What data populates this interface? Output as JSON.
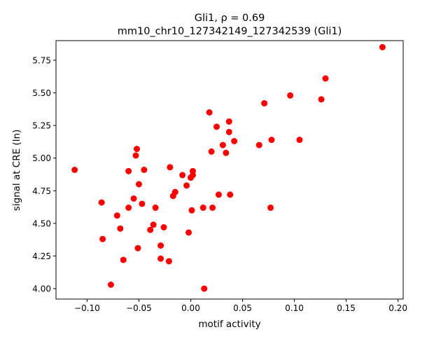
{
  "chart_data": {
    "type": "scatter",
    "title_line1": "Gli1, ρ = 0.69",
    "title_line2": "mm10_chr10_127342149_127342539 (Gli1)",
    "xlabel": "motif activity",
    "ylabel": "signal at CRE (ln)",
    "xlim": [
      -0.13,
      0.205
    ],
    "ylim": [
      3.92,
      5.9
    ],
    "xticks": [
      -0.1,
      -0.05,
      0.0,
      0.05,
      0.1,
      0.15,
      0.2
    ],
    "xtick_labels": [
      "−0.10",
      "−0.05",
      "0.00",
      "0.05",
      "0.10",
      "0.15",
      "0.20"
    ],
    "yticks": [
      4.0,
      4.25,
      4.5,
      4.75,
      5.0,
      5.25,
      5.5,
      5.75
    ],
    "ytick_labels": [
      "4.00",
      "4.25",
      "4.50",
      "4.75",
      "5.00",
      "5.25",
      "5.50",
      "5.75"
    ],
    "grid": false,
    "marker_color": "#ff0000",
    "points": [
      {
        "x": -0.112,
        "y": 4.91
      },
      {
        "x": -0.086,
        "y": 4.66
      },
      {
        "x": -0.085,
        "y": 4.38
      },
      {
        "x": -0.077,
        "y": 4.03
      },
      {
        "x": -0.071,
        "y": 4.56
      },
      {
        "x": -0.068,
        "y": 4.46
      },
      {
        "x": -0.065,
        "y": 4.22
      },
      {
        "x": -0.06,
        "y": 4.9
      },
      {
        "x": -0.06,
        "y": 4.62
      },
      {
        "x": -0.055,
        "y": 4.69
      },
      {
        "x": -0.053,
        "y": 5.02
      },
      {
        "x": -0.052,
        "y": 5.07
      },
      {
        "x": -0.051,
        "y": 4.31
      },
      {
        "x": -0.05,
        "y": 4.8
      },
      {
        "x": -0.047,
        "y": 4.65
      },
      {
        "x": -0.045,
        "y": 4.91
      },
      {
        "x": -0.039,
        "y": 4.45
      },
      {
        "x": -0.036,
        "y": 4.49
      },
      {
        "x": -0.034,
        "y": 4.62
      },
      {
        "x": -0.029,
        "y": 4.33
      },
      {
        "x": -0.029,
        "y": 4.23
      },
      {
        "x": -0.026,
        "y": 4.47
      },
      {
        "x": -0.021,
        "y": 4.21
      },
      {
        "x": -0.02,
        "y": 4.93
      },
      {
        "x": -0.017,
        "y": 4.71
      },
      {
        "x": -0.015,
        "y": 4.74
      },
      {
        "x": -0.008,
        "y": 4.87
      },
      {
        "x": -0.004,
        "y": 4.79
      },
      {
        "x": -0.002,
        "y": 4.43
      },
      {
        "x": 0.0,
        "y": 4.85
      },
      {
        "x": 0.001,
        "y": 4.6
      },
      {
        "x": 0.002,
        "y": 4.87
      },
      {
        "x": 0.002,
        "y": 4.9
      },
      {
        "x": 0.012,
        "y": 4.62
      },
      {
        "x": 0.013,
        "y": 4.0
      },
      {
        "x": 0.018,
        "y": 5.35
      },
      {
        "x": 0.02,
        "y": 5.05
      },
      {
        "x": 0.021,
        "y": 4.62
      },
      {
        "x": 0.025,
        "y": 5.24
      },
      {
        "x": 0.027,
        "y": 4.72
      },
      {
        "x": 0.031,
        "y": 5.1
      },
      {
        "x": 0.034,
        "y": 5.04
      },
      {
        "x": 0.037,
        "y": 5.28
      },
      {
        "x": 0.037,
        "y": 5.2
      },
      {
        "x": 0.038,
        "y": 4.72
      },
      {
        "x": 0.042,
        "y": 5.13
      },
      {
        "x": 0.066,
        "y": 5.1
      },
      {
        "x": 0.071,
        "y": 5.42
      },
      {
        "x": 0.077,
        "y": 4.62
      },
      {
        "x": 0.078,
        "y": 5.14
      },
      {
        "x": 0.096,
        "y": 5.48
      },
      {
        "x": 0.105,
        "y": 5.14
      },
      {
        "x": 0.126,
        "y": 5.45
      },
      {
        "x": 0.13,
        "y": 5.61
      },
      {
        "x": 0.185,
        "y": 5.85
      }
    ]
  }
}
